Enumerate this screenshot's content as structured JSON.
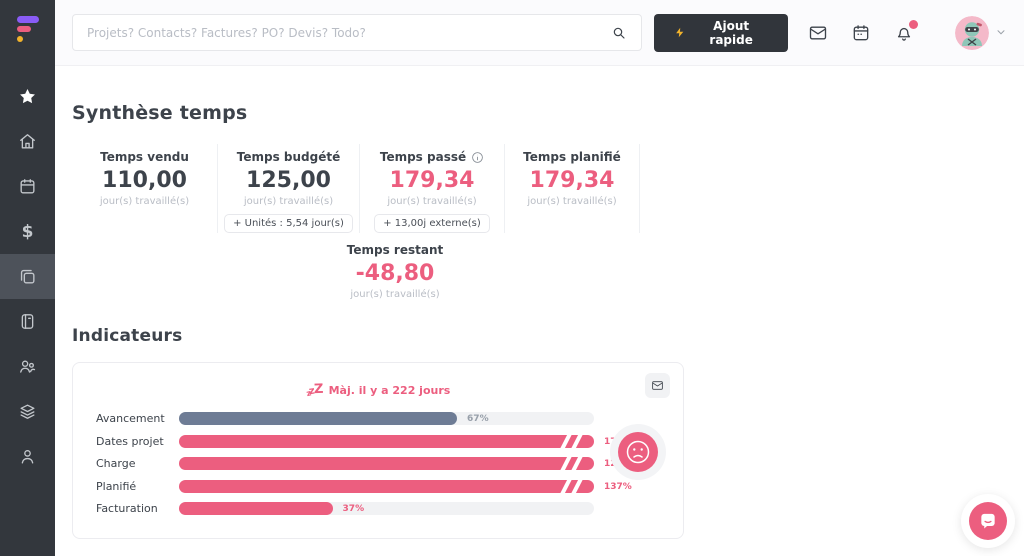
{
  "colors": {
    "accent_pink": "#ec5e7f",
    "slate_blue_bar": "#6e7c95",
    "dark_text": "#3d434b",
    "muted_text": "#b9bdc5",
    "sidebar_bg": "#33373d",
    "logo_purple": "#8a5cf6",
    "logo_yellow": "#f2b32c"
  },
  "sidebar": {
    "active_item": "projects",
    "items": [
      "favorites-star",
      "home",
      "calendar",
      "finance-dollar",
      "projects-copy",
      "notebook",
      "team-users",
      "layers",
      "profile-person"
    ]
  },
  "header": {
    "search": {
      "placeholder": "Projets? Contacts? Factures? PO? Devis? Todo?"
    },
    "quick_add": {
      "label": "Ajout rapide"
    }
  },
  "synthese": {
    "title": "Synthèse temps",
    "metrics": [
      {
        "label": "Temps vendu",
        "value": "110,00",
        "unit": "jour(s) travaillé(s)"
      },
      {
        "label": "Temps budgété",
        "value": "125,00",
        "unit": "jour(s) travaillé(s)",
        "badge": "+ Unités : 5,54 jour(s)"
      },
      {
        "label": "Temps passé",
        "value": "179,34",
        "unit": "jour(s) travaillé(s)",
        "badge": "+ 13,00j externe(s)"
      },
      {
        "label": "Temps planifié",
        "value": "179,34",
        "unit": "jour(s) travaillé(s)"
      }
    ],
    "restant": {
      "label": "Temps restant",
      "value": "-48,80",
      "unit": "jour(s) travaillé(s)"
    }
  },
  "indicateurs": {
    "title": "Indicateurs",
    "update_note": "Màj. il y a 222 jours"
  },
  "chart_data": {
    "type": "bar",
    "orientation": "horizontal",
    "title": "Indicateurs",
    "categories": [
      "Avancement",
      "Dates projet",
      "Charge",
      "Planifié",
      "Facturation"
    ],
    "values": [
      67,
      174,
      126,
      137,
      37
    ],
    "value_labels": [
      "67%",
      "174%",
      "126%",
      "137%",
      "37%"
    ],
    "bar_colors": [
      "#6e7c95",
      "#ec5e7f",
      "#ec5e7f",
      "#ec5e7f",
      "#ec5e7f"
    ],
    "label_colors": [
      "#98a0aa",
      "#ec5e7f",
      "#ec5e7f",
      "#ec5e7f",
      "#ec5e7f"
    ],
    "xlim": [
      0,
      100
    ],
    "overflow_marker": "double-slash",
    "grid": false,
    "legend": false
  }
}
